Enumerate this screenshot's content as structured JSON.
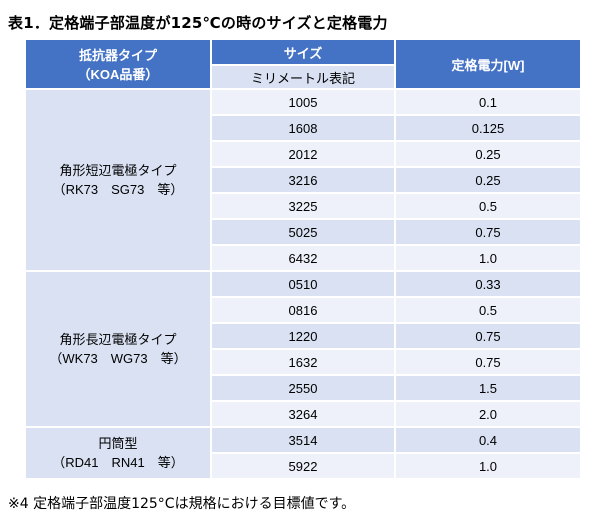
{
  "title": "表1．定格端子部温度が125℃の時のサイズと定格電力",
  "header": {
    "type_label_line1": "抵抗器タイプ",
    "type_label_line2": "（KOA品番）",
    "size_label": "サイズ",
    "size_sub_label": "ミリメートル表記",
    "power_label": "定格電力[W]"
  },
  "groups": [
    {
      "name_line1": "角形短辺電極タイプ",
      "name_line2": "（RK73　SG73　等）",
      "rows": [
        {
          "size": "1005",
          "power": "0.1"
        },
        {
          "size": "1608",
          "power": "0.125"
        },
        {
          "size": "2012",
          "power": "0.25"
        },
        {
          "size": "3216",
          "power": "0.25"
        },
        {
          "size": "3225",
          "power": "0.5"
        },
        {
          "size": "5025",
          "power": "0.75"
        },
        {
          "size": "6432",
          "power": "1.0"
        }
      ]
    },
    {
      "name_line1": "角形長辺電極タイプ",
      "name_line2": "（WK73　WG73　等）",
      "rows": [
        {
          "size": "0510",
          "power": "0.33"
        },
        {
          "size": "0816",
          "power": "0.5"
        },
        {
          "size": "1220",
          "power": "0.75"
        },
        {
          "size": "1632",
          "power": "0.75"
        },
        {
          "size": "2550",
          "power": "1.5"
        },
        {
          "size": "3264",
          "power": "2.0"
        }
      ]
    },
    {
      "name_line1": "円筒型",
      "name_line2": "（RD41　RN41　等）",
      "rows": [
        {
          "size": "3514",
          "power": "0.4"
        },
        {
          "size": "5922",
          "power": "1.0"
        }
      ]
    }
  ],
  "footnote": "※4 定格端子部温度125°Cは規格における目標値です。"
}
